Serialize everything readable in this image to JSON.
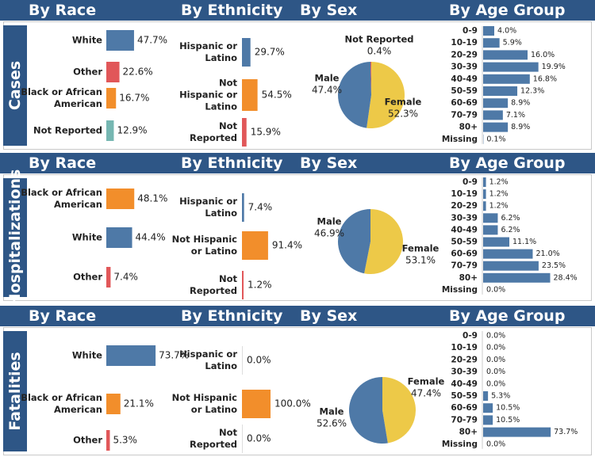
{
  "headers": {
    "race": "By Race",
    "ethnicity": "By Ethnicity",
    "sex": "By Sex",
    "age": "By Age Group"
  },
  "colors": {
    "blue": "#4e79a7",
    "orange": "#f28e2b",
    "red": "#e15759",
    "teal": "#76b7b2",
    "yellow": "#edc948",
    "navy": "#2e5686"
  },
  "sections": [
    {
      "title": "Cases",
      "race": [
        {
          "label": [
            "White"
          ],
          "value": "47.7%",
          "pct": 47.7,
          "color": "blue"
        },
        {
          "label": [
            "Other"
          ],
          "value": "22.6%",
          "pct": 22.6,
          "color": "red"
        },
        {
          "label": [
            "Black or African",
            "American"
          ],
          "value": "16.7%",
          "pct": 16.7,
          "color": "orange"
        },
        {
          "label": [
            "Not Reported"
          ],
          "value": "12.9%",
          "pct": 12.9,
          "color": "teal"
        }
      ],
      "ethnicity": [
        {
          "label": [
            "Hispanic or",
            "Latino"
          ],
          "value": "29.7%",
          "pct": 29.7,
          "color": "blue"
        },
        {
          "label": [
            "Not",
            "Hispanic or",
            "Latino"
          ],
          "value": "54.5%",
          "pct": 54.5,
          "color": "orange"
        },
        {
          "label": [
            "Not",
            "Reported"
          ],
          "value": "15.9%",
          "pct": 15.9,
          "color": "red"
        }
      ],
      "sex": [
        {
          "label": "Female",
          "value": "52.3%",
          "pct": 52.3,
          "color": "yellow"
        },
        {
          "label": "Male",
          "value": "47.4%",
          "pct": 47.4,
          "color": "blue"
        },
        {
          "label": "Not Reported",
          "value": "0.4%",
          "pct": 0.4,
          "color": "red"
        }
      ],
      "age": [
        {
          "label": "0-9",
          "value": "4.0%",
          "pct": 4.0
        },
        {
          "label": "10-19",
          "value": "5.9%",
          "pct": 5.9
        },
        {
          "label": "20-29",
          "value": "16.0%",
          "pct": 16.0
        },
        {
          "label": "30-39",
          "value": "19.9%",
          "pct": 19.9
        },
        {
          "label": "40-49",
          "value": "16.8%",
          "pct": 16.8
        },
        {
          "label": "50-59",
          "value": "12.3%",
          "pct": 12.3
        },
        {
          "label": "60-69",
          "value": "8.9%",
          "pct": 8.9
        },
        {
          "label": "70-79",
          "value": "7.1%",
          "pct": 7.1
        },
        {
          "label": "80+",
          "value": "8.9%",
          "pct": 8.9
        },
        {
          "label": "Missing",
          "value": "0.1%",
          "pct": 0.1
        }
      ]
    },
    {
      "title": "Hospitalizations",
      "race": [
        {
          "label": [
            "Black or African",
            "American"
          ],
          "value": "48.1%",
          "pct": 48.1,
          "color": "orange"
        },
        {
          "label": [
            "White"
          ],
          "value": "44.4%",
          "pct": 44.4,
          "color": "blue"
        },
        {
          "label": [
            "Other"
          ],
          "value": "7.4%",
          "pct": 7.4,
          "color": "red"
        }
      ],
      "ethnicity": [
        {
          "label": [
            "Hispanic or",
            "Latino"
          ],
          "value": "7.4%",
          "pct": 7.4,
          "color": "blue"
        },
        {
          "label": [
            "Not Hispanic",
            "or Latino"
          ],
          "value": "91.4%",
          "pct": 91.4,
          "color": "orange"
        },
        {
          "label": [
            "Not",
            "Reported"
          ],
          "value": "1.2%",
          "pct": 1.2,
          "color": "red"
        }
      ],
      "sex": [
        {
          "label": "Female",
          "value": "53.1%",
          "pct": 53.1,
          "color": "yellow"
        },
        {
          "label": "Male",
          "value": "46.9%",
          "pct": 46.9,
          "color": "blue"
        }
      ],
      "age": [
        {
          "label": "0-9",
          "value": "1.2%",
          "pct": 1.2
        },
        {
          "label": "10-19",
          "value": "1.2%",
          "pct": 1.2
        },
        {
          "label": "20-29",
          "value": "1.2%",
          "pct": 1.2
        },
        {
          "label": "30-39",
          "value": "6.2%",
          "pct": 6.2
        },
        {
          "label": "40-49",
          "value": "6.2%",
          "pct": 6.2
        },
        {
          "label": "50-59",
          "value": "11.1%",
          "pct": 11.1
        },
        {
          "label": "60-69",
          "value": "21.0%",
          "pct": 21.0
        },
        {
          "label": "70-79",
          "value": "23.5%",
          "pct": 23.5
        },
        {
          "label": "80+",
          "value": "28.4%",
          "pct": 28.4
        },
        {
          "label": "Missing",
          "value": "0.0%",
          "pct": 0.0
        }
      ]
    },
    {
      "title": "Fatalities",
      "race": [
        {
          "label": [
            "White"
          ],
          "value": "73.7%",
          "pct": 73.7,
          "color": "blue"
        },
        {
          "label": [
            "Black or African",
            "American"
          ],
          "value": "21.1%",
          "pct": 21.1,
          "color": "orange"
        },
        {
          "label": [
            "Other"
          ],
          "value": "5.3%",
          "pct": 5.3,
          "color": "red"
        }
      ],
      "ethnicity": [
        {
          "label": [
            "Hispanic or",
            "Latino"
          ],
          "value": "0.0%",
          "pct": 0.0,
          "color": "blue"
        },
        {
          "label": [
            "Not Hispanic",
            "or Latino"
          ],
          "value": "100.0%",
          "pct": 100.0,
          "color": "orange"
        },
        {
          "label": [
            "Not",
            "Reported"
          ],
          "value": "0.0%",
          "pct": 0.0,
          "color": "red"
        }
      ],
      "sex": [
        {
          "label": "Female",
          "value": "47.4%",
          "pct": 47.4,
          "color": "yellow"
        },
        {
          "label": "Male",
          "value": "52.6%",
          "pct": 52.6,
          "color": "blue"
        }
      ],
      "age": [
        {
          "label": "0-9",
          "value": "0.0%",
          "pct": 0.0
        },
        {
          "label": "10-19",
          "value": "0.0%",
          "pct": 0.0
        },
        {
          "label": "20-29",
          "value": "0.0%",
          "pct": 0.0
        },
        {
          "label": "30-39",
          "value": "0.0%",
          "pct": 0.0
        },
        {
          "label": "40-49",
          "value": "0.0%",
          "pct": 0.0
        },
        {
          "label": "50-59",
          "value": "5.3%",
          "pct": 5.3
        },
        {
          "label": "60-69",
          "value": "10.5%",
          "pct": 10.5
        },
        {
          "label": "70-79",
          "value": "10.5%",
          "pct": 10.5
        },
        {
          "label": "80+",
          "value": "73.7%",
          "pct": 73.7
        },
        {
          "label": "Missing",
          "value": "0.0%",
          "pct": 0.0
        }
      ]
    }
  ],
  "chart_data": [
    {
      "type": "bar",
      "section": "Cases",
      "chart": "By Race",
      "categories": [
        "White",
        "Other",
        "Black or African American",
        "Not Reported"
      ],
      "values": [
        47.7,
        22.6,
        16.7,
        12.9
      ]
    },
    {
      "type": "bar",
      "section": "Cases",
      "chart": "By Ethnicity",
      "categories": [
        "Hispanic or Latino",
        "Not Hispanic or Latino",
        "Not Reported"
      ],
      "values": [
        29.7,
        54.5,
        15.9
      ]
    },
    {
      "type": "pie",
      "section": "Cases",
      "chart": "By Sex",
      "categories": [
        "Female",
        "Male",
        "Not Reported"
      ],
      "values": [
        52.3,
        47.4,
        0.4
      ]
    },
    {
      "type": "bar",
      "section": "Cases",
      "chart": "By Age Group",
      "categories": [
        "0-9",
        "10-19",
        "20-29",
        "30-39",
        "40-49",
        "50-59",
        "60-69",
        "70-79",
        "80+",
        "Missing"
      ],
      "values": [
        4.0,
        5.9,
        16.0,
        19.9,
        16.8,
        12.3,
        8.9,
        7.1,
        8.9,
        0.1
      ]
    },
    {
      "type": "bar",
      "section": "Hospitalizations",
      "chart": "By Race",
      "categories": [
        "Black or African American",
        "White",
        "Other"
      ],
      "values": [
        48.1,
        44.4,
        7.4
      ]
    },
    {
      "type": "bar",
      "section": "Hospitalizations",
      "chart": "By Ethnicity",
      "categories": [
        "Hispanic or Latino",
        "Not Hispanic or Latino",
        "Not Reported"
      ],
      "values": [
        7.4,
        91.4,
        1.2
      ]
    },
    {
      "type": "pie",
      "section": "Hospitalizations",
      "chart": "By Sex",
      "categories": [
        "Female",
        "Male"
      ],
      "values": [
        53.1,
        46.9
      ]
    },
    {
      "type": "bar",
      "section": "Hospitalizations",
      "chart": "By Age Group",
      "categories": [
        "0-9",
        "10-19",
        "20-29",
        "30-39",
        "40-49",
        "50-59",
        "60-69",
        "70-79",
        "80+",
        "Missing"
      ],
      "values": [
        1.2,
        1.2,
        1.2,
        6.2,
        6.2,
        11.1,
        21.0,
        23.5,
        28.4,
        0.0
      ]
    },
    {
      "type": "bar",
      "section": "Fatalities",
      "chart": "By Race",
      "categories": [
        "White",
        "Black or African American",
        "Other"
      ],
      "values": [
        73.7,
        21.1,
        5.3
      ]
    },
    {
      "type": "bar",
      "section": "Fatalities",
      "chart": "By Ethnicity",
      "categories": [
        "Hispanic or Latino",
        "Not Hispanic or Latino",
        "Not Reported"
      ],
      "values": [
        0.0,
        100.0,
        0.0
      ]
    },
    {
      "type": "pie",
      "section": "Fatalities",
      "chart": "By Sex",
      "categories": [
        "Female",
        "Male"
      ],
      "values": [
        47.4,
        52.6
      ]
    },
    {
      "type": "bar",
      "section": "Fatalities",
      "chart": "By Age Group",
      "categories": [
        "0-9",
        "10-19",
        "20-29",
        "30-39",
        "40-49",
        "50-59",
        "60-69",
        "70-79",
        "80+",
        "Missing"
      ],
      "values": [
        0.0,
        0.0,
        0.0,
        0.0,
        0.0,
        5.3,
        10.5,
        10.5,
        73.7,
        0.0
      ]
    }
  ]
}
